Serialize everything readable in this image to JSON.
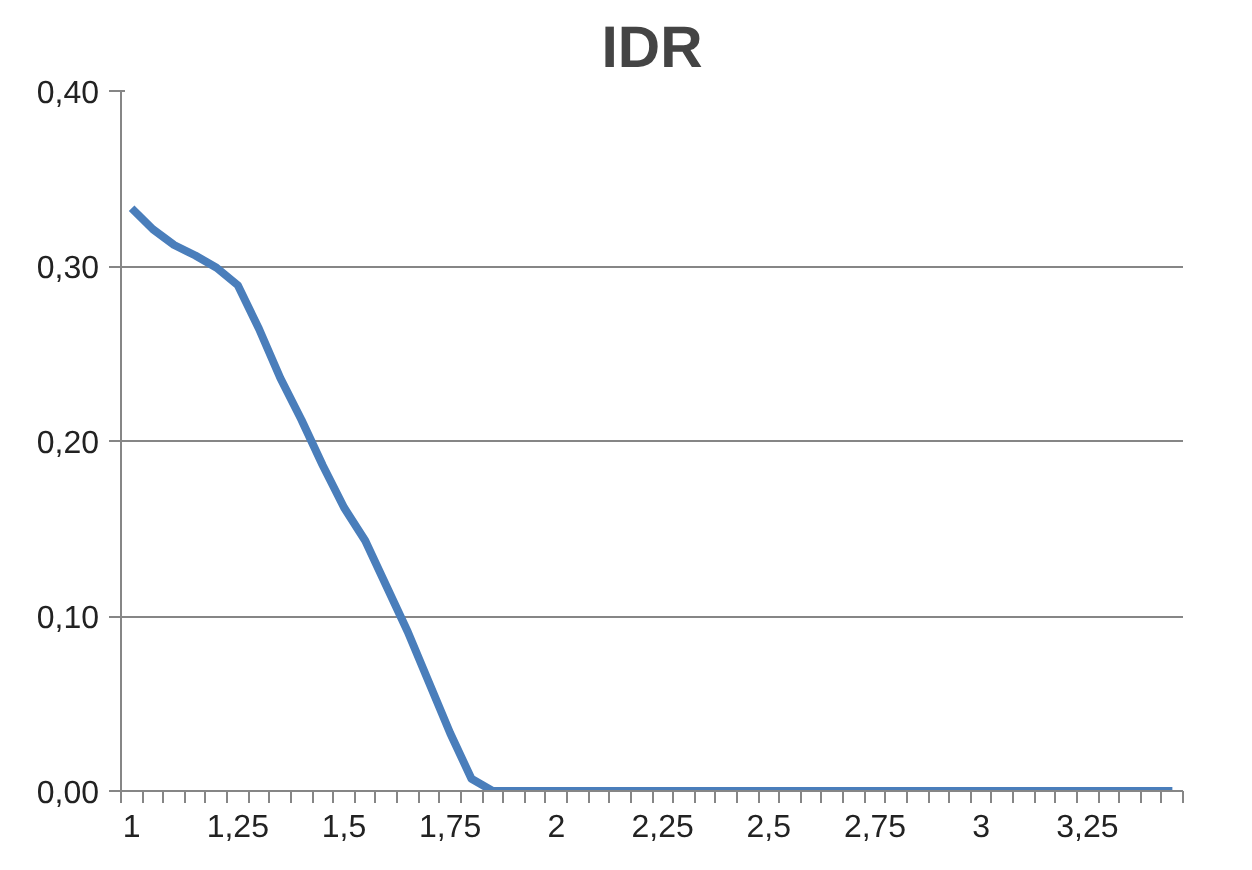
{
  "chart_data": {
    "type": "line",
    "title": "IDR",
    "categories": [
      "1",
      null,
      null,
      null,
      null,
      "1,25",
      null,
      null,
      null,
      null,
      "1,5",
      null,
      null,
      null,
      null,
      "1,75",
      null,
      null,
      null,
      null,
      "2",
      null,
      null,
      null,
      null,
      "2,25",
      null,
      null,
      null,
      null,
      "2,5",
      null,
      null,
      null,
      null,
      "2,75",
      null,
      null,
      null,
      null,
      "3",
      null,
      null,
      null,
      null,
      "3,25",
      null,
      null,
      null,
      null
    ],
    "series": [
      {
        "color": "#4a7ebb",
        "values": [
          0.333,
          0.321,
          0.312,
          0.306,
          0.299,
          0.289,
          0.264,
          0.236,
          0.212,
          0.186,
          0.162,
          0.143,
          0.117,
          0.091,
          0.062,
          0.033,
          0.007,
          0,
          0,
          0,
          0,
          0,
          0,
          0,
          0,
          0,
          0,
          0,
          0,
          0,
          0,
          0,
          0,
          0,
          0,
          0,
          0,
          0,
          0,
          0,
          0,
          0,
          0,
          0,
          0,
          0,
          0,
          0,
          0,
          0
        ]
      }
    ],
    "ylim": [
      0,
      0.4
    ],
    "yticks": [
      {
        "value": 0,
        "label": "0,00"
      },
      {
        "value": 0.1,
        "label": "0,10"
      },
      {
        "value": 0.2,
        "label": "0,20"
      },
      {
        "value": 0.3,
        "label": "0,30"
      },
      {
        "value": 0.4,
        "label": "0,40"
      }
    ],
    "grid": "y",
    "marker": "none",
    "line_style": "solid"
  }
}
